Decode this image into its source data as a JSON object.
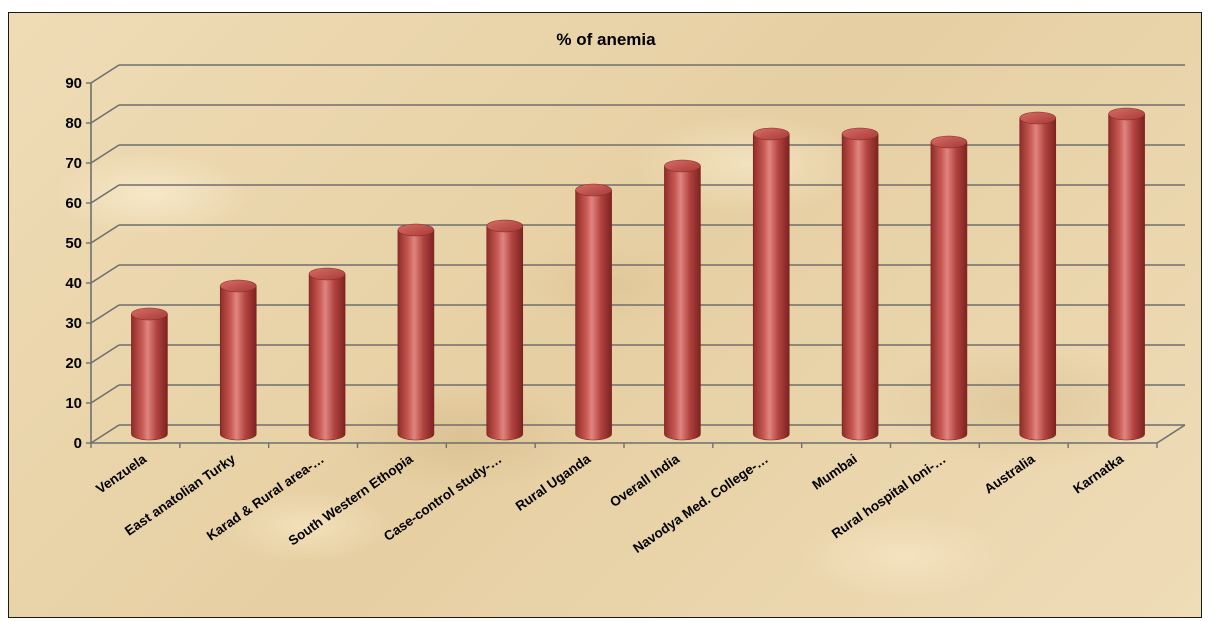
{
  "chart_data": {
    "type": "bar",
    "style": "3d-cylinder",
    "title": "% of anemia",
    "xlabel": "",
    "ylabel": "",
    "ylim": [
      0,
      90
    ],
    "yticks": [
      0,
      10,
      20,
      30,
      40,
      50,
      60,
      70,
      80,
      90
    ],
    "grid": true,
    "legend": "none",
    "categories": [
      "Venzuela",
      "East anatolian Turky",
      "Karad & Rural area-…",
      "South Western Ethopia",
      "Case-control study-…",
      "Rural Uganda",
      "Overall India",
      "Navodya Med. College-…",
      "Mumbai",
      "Rural hospital loni-…",
      "Australia",
      "Karnatka"
    ],
    "series": [
      {
        "values": [
          30,
          37,
          40,
          51,
          52,
          61,
          67,
          75,
          75,
          73,
          79,
          80
        ]
      }
    ],
    "colors": {
      "bar": "#c0504d",
      "bar_dark": "#8b2a27",
      "bar_light": "#e3928c",
      "grid": "#6f6f6f",
      "background": "#ecd9b0"
    }
  }
}
